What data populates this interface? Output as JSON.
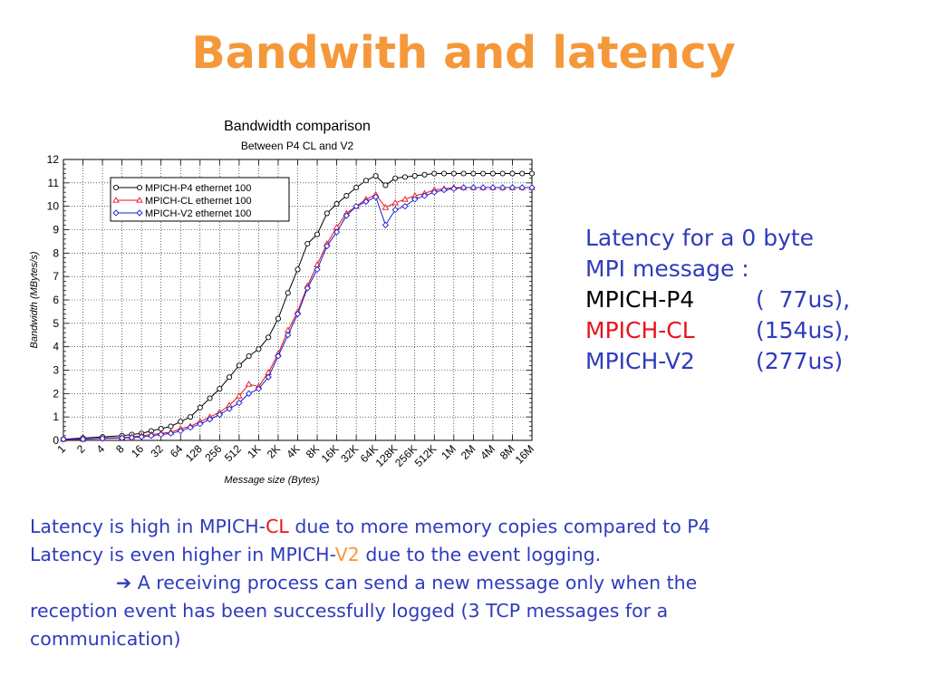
{
  "slide": {
    "title": "Bandwith and latency"
  },
  "colors": {
    "title": "#f5983a",
    "body_text": "#2e3bbd",
    "highlight_red": "#e8131a",
    "highlight_orange": "#f5983a",
    "p4_series": "#000000",
    "cl_series": "#e8131a",
    "v2_series": "#1a1fd6"
  },
  "chart_data": {
    "type": "line",
    "title": "Bandwidth comparison",
    "subtitle": "Between P4 CL and V2",
    "xlabel": "Message size (Bytes)",
    "ylabel": "Bandwidth (MBytes/s)",
    "x_scale": "log2",
    "x_ticks": [
      "1",
      "2",
      "4",
      "8",
      "16",
      "32",
      "64",
      "128",
      "256",
      "512",
      "1K",
      "2K",
      "4K",
      "8K",
      "16K",
      "32K",
      "64K",
      "128K",
      "256K",
      "512K",
      "1M",
      "2M",
      "4M",
      "8M",
      "16M"
    ],
    "ylim": [
      0,
      12
    ],
    "y_ticks": [
      0,
      1,
      2,
      3,
      4,
      5,
      6,
      7,
      8,
      9,
      10,
      11,
      12
    ],
    "legend_position": "top-left",
    "x_exp": [
      0,
      1,
      2,
      3,
      3.5,
      4,
      4.5,
      5,
      5.5,
      6,
      6.5,
      7,
      7.5,
      8,
      8.5,
      9,
      9.5,
      10,
      10.5,
      11,
      11.5,
      12,
      12.5,
      13,
      13.5,
      14,
      14.5,
      15,
      15.5,
      16,
      16.5,
      17,
      17.5,
      18,
      18.5,
      19,
      19.5,
      20,
      20.5,
      21,
      21.5,
      22,
      22.5,
      23,
      23.5,
      24
    ],
    "series": [
      {
        "name": "MPICH-P4 ethernet 100",
        "marker": "circle",
        "values": [
          0.05,
          0.1,
          0.15,
          0.2,
          0.25,
          0.3,
          0.4,
          0.5,
          0.6,
          0.8,
          1.0,
          1.4,
          1.8,
          2.2,
          2.7,
          3.2,
          3.6,
          3.9,
          4.4,
          5.2,
          6.3,
          7.3,
          8.4,
          8.8,
          9.7,
          10.1,
          10.45,
          10.8,
          11.1,
          11.3,
          10.9,
          11.2,
          11.25,
          11.3,
          11.35,
          11.4,
          11.4,
          11.4,
          11.4,
          11.4,
          11.4,
          11.4,
          11.4,
          11.4,
          11.4,
          11.4
        ]
      },
      {
        "name": "MPICH-CL ethernet 100",
        "marker": "triangle",
        "values": [
          0.05,
          0.05,
          0.1,
          0.12,
          0.15,
          0.2,
          0.25,
          0.3,
          0.35,
          0.5,
          0.6,
          0.8,
          1.0,
          1.2,
          1.5,
          1.9,
          2.4,
          2.3,
          2.9,
          3.7,
          4.7,
          5.5,
          6.6,
          7.5,
          8.4,
          9.1,
          9.7,
          10.0,
          10.3,
          10.5,
          9.95,
          10.15,
          10.3,
          10.45,
          10.55,
          10.7,
          10.75,
          10.8,
          10.8,
          10.8,
          10.8,
          10.8,
          10.8,
          10.8,
          10.8,
          10.8
        ]
      },
      {
        "name": "MPICH-V2 ethernet 100",
        "marker": "diamond",
        "values": [
          0.05,
          0.05,
          0.08,
          0.1,
          0.12,
          0.15,
          0.2,
          0.25,
          0.3,
          0.4,
          0.55,
          0.7,
          0.9,
          1.1,
          1.35,
          1.6,
          2.0,
          2.2,
          2.7,
          3.6,
          4.5,
          5.4,
          6.5,
          7.3,
          8.3,
          8.9,
          9.6,
          10.0,
          10.2,
          10.4,
          9.2,
          9.85,
          10.0,
          10.3,
          10.45,
          10.6,
          10.7,
          10.75,
          10.8,
          10.8,
          10.8,
          10.8,
          10.8,
          10.8,
          10.8,
          10.8
        ]
      }
    ]
  },
  "latency": {
    "heading_line1": "Latency for a 0 byte",
    "heading_line2": "MPI message :",
    "rows": [
      {
        "name": "MPICH-P4",
        "value": "(  77us),"
      },
      {
        "name": "MPICH-CL",
        "value": "(154us),"
      },
      {
        "name": "MPICH-V2",
        "value": "(277us)"
      }
    ]
  },
  "notes": {
    "line1_pre": "Latency is high in MPICH-",
    "line1_hl": "CL",
    "line1_post": " due to more memory copies compared to P4",
    "line2_pre": "Latency is even higher in MPICH-",
    "line2_hl": "V2",
    "line2_post": " due to the event logging.",
    "arrow": "➔",
    "line3": " A receiving process can send a new message only when the",
    "line4": "reception event has been successfully logged (3 TCP messages for a",
    "line5": "communication)"
  }
}
